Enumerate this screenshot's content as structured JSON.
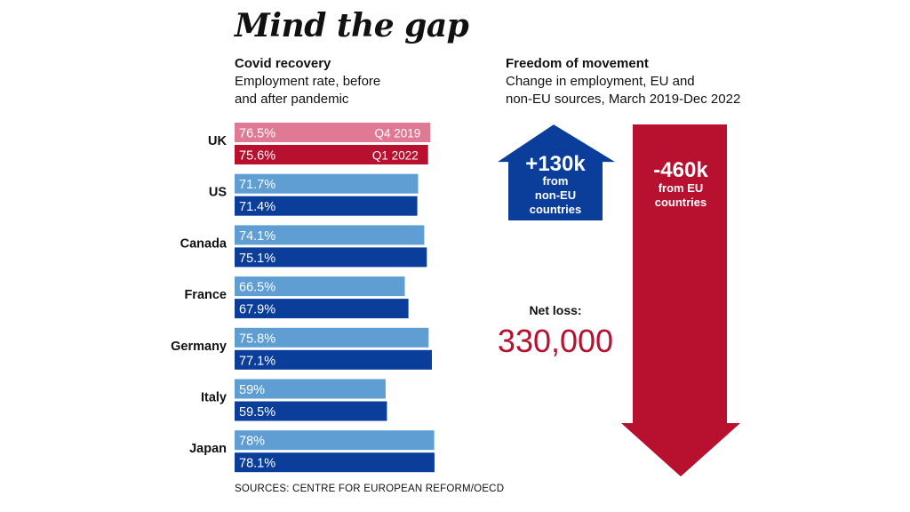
{
  "title": "Mind the gap",
  "left_panel": {
    "heading": "Covid recovery",
    "subheading": "Employment rate, before\nand after pandemic"
  },
  "right_panel": {
    "heading": "Freedom of movement",
    "subheading": "Change in employment, EU and\nnon-EU sources, March 2019-Dec 2022"
  },
  "source": "SOURCES: CENTRE FOR EUROPEAN REFORM/OECD",
  "colors": {
    "before_default": "#5e9ed3",
    "after_default": "#0b3d9a",
    "before_uk": "#e07a94",
    "after_uk": "#b8112f",
    "up_arrow": "#0b3d9a",
    "down_arrow": "#b8112f",
    "net_value": "#b8112f"
  },
  "chart_data": [
    {
      "type": "bar",
      "orientation": "horizontal",
      "categories": [
        "UK",
        "US",
        "Canada",
        "France",
        "Germany",
        "Italy",
        "Japan"
      ],
      "series": [
        {
          "name": "Q4 2019",
          "values": [
            76.5,
            71.7,
            74.1,
            66.5,
            75.8,
            59,
            78
          ]
        },
        {
          "name": "Q1 2022",
          "values": [
            75.6,
            71.4,
            75.1,
            67.9,
            77.1,
            59.5,
            78.1
          ]
        }
      ],
      "value_labels": [
        [
          "76.5%",
          "75.6%"
        ],
        [
          "71.7%",
          "71.4%"
        ],
        [
          "74.1%",
          "75.1%"
        ],
        [
          "66.5%",
          "67.9%"
        ],
        [
          "75.8%",
          "77.1%"
        ],
        [
          "59%",
          "59.5%"
        ],
        [
          "78%",
          "78.1%"
        ]
      ],
      "legend": "inline labels on UK bars",
      "grid": false
    },
    {
      "type": "arrows",
      "items": [
        {
          "value": "+130k",
          "label": "from\nnon-EU\ncountries",
          "amount": 130000,
          "direction": "up"
        },
        {
          "value": "-460k",
          "label": "from EU\ncountries",
          "amount": -460000,
          "direction": "down"
        }
      ],
      "net": {
        "label": "Net loss:",
        "value": "330,000"
      }
    }
  ]
}
